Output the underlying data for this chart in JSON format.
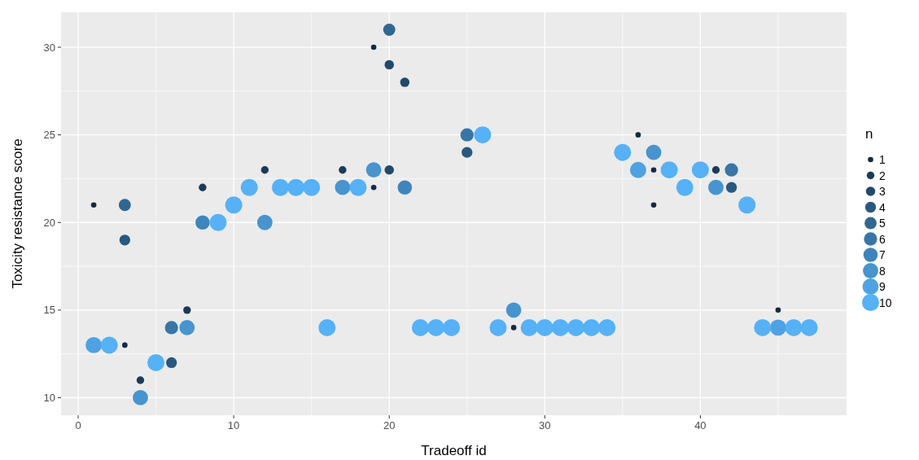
{
  "chart_data": {
    "type": "bubble",
    "xlabel": "Tradeoff id",
    "ylabel": "Toxicity resistance score",
    "legend_title": "n",
    "grid": true,
    "xlim": [
      -1.1,
      49.4
    ],
    "ylim": [
      9,
      32
    ],
    "xticks": [
      0,
      10,
      20,
      30,
      40
    ],
    "yticks": [
      10,
      15,
      20,
      25,
      30
    ],
    "size_legend": [
      1,
      2,
      3,
      4,
      5,
      6,
      7,
      8,
      9,
      10
    ],
    "series": [
      {
        "name": "1",
        "color": "#132b43",
        "x": [
          1,
          3,
          19,
          19,
          28,
          36,
          37,
          37,
          45
        ],
        "values": [
          21,
          13,
          30,
          22,
          14,
          25,
          23,
          21,
          15
        ],
        "sizes": [
          1,
          1,
          1,
          1,
          1,
          1,
          1,
          1,
          1
        ]
      },
      {
        "name": "2",
        "color": "#1a3a57",
        "x": [
          4,
          7,
          8,
          12,
          17,
          41
        ],
        "values": [
          11,
          15,
          22,
          23,
          23,
          23
        ],
        "sizes": [
          2,
          2,
          2,
          2,
          2,
          2
        ]
      },
      {
        "name": "3",
        "color": "#22496b",
        "x": [
          20,
          20,
          21
        ],
        "values": [
          29,
          23,
          28
        ],
        "sizes": [
          3,
          3,
          3
        ]
      },
      {
        "name": "4",
        "color": "#29587f",
        "x": [
          3,
          6,
          25,
          42
        ],
        "values": [
          19,
          12,
          24,
          22
        ],
        "sizes": [
          4,
          4,
          4,
          4
        ]
      },
      {
        "name": "5",
        "color": "#316793",
        "x": [
          3,
          20
        ],
        "values": [
          21,
          31
        ],
        "sizes": [
          5,
          5
        ]
      },
      {
        "name": "6",
        "color": "#3876a7",
        "x": [
          6,
          25,
          42
        ],
        "values": [
          14,
          25,
          23
        ],
        "sizes": [
          6,
          6,
          6
        ]
      },
      {
        "name": "7",
        "color": "#3f85bb",
        "x": [
          8,
          21
        ],
        "values": [
          20,
          22
        ],
        "sizes": [
          7,
          7
        ]
      },
      {
        "name": "8",
        "color": "#4794cf",
        "x": [
          4,
          7,
          12,
          17,
          19,
          28,
          37,
          41
        ],
        "values": [
          10,
          14,
          20,
          22,
          23,
          15,
          24,
          22
        ],
        "sizes": [
          8,
          8,
          8,
          8,
          8,
          8,
          8,
          8
        ]
      },
      {
        "name": "9",
        "color": "#4ea2e3",
        "x": [
          1,
          36,
          45
        ],
        "values": [
          13,
          23,
          14
        ],
        "sizes": [
          9,
          9,
          9
        ]
      },
      {
        "name": "10",
        "color": "#56b1f7",
        "x": [
          2,
          5,
          9,
          10,
          11,
          13,
          14,
          15,
          16,
          18,
          22,
          23,
          24,
          26,
          27,
          29,
          30,
          31,
          32,
          33,
          34,
          35,
          38,
          39,
          40,
          43,
          44,
          46,
          47
        ],
        "values": [
          13,
          12,
          20,
          21,
          22,
          22,
          22,
          22,
          14,
          22,
          14,
          14,
          14,
          25,
          14,
          14,
          14,
          14,
          14,
          14,
          14,
          24,
          23,
          22,
          23,
          21,
          14,
          14,
          14
        ],
        "sizes": [
          10,
          10,
          10,
          10,
          10,
          10,
          10,
          10,
          10,
          10,
          10,
          10,
          10,
          10,
          10,
          10,
          10,
          10,
          10,
          10,
          10,
          10,
          10,
          10,
          10,
          10,
          10,
          10,
          10
        ]
      }
    ]
  }
}
